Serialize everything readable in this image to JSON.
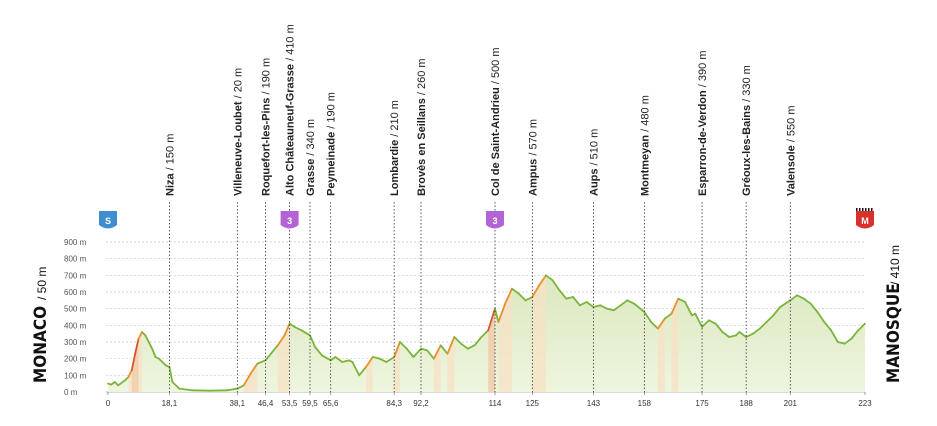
{
  "chart_data": {
    "type": "area",
    "title": "",
    "xlabel": "",
    "ylabel": "",
    "ylim": [
      0,
      900
    ],
    "xlim": [
      0,
      223
    ],
    "y_ticks": [
      "900 m",
      "800 m",
      "700 m",
      "600 m",
      "500 m",
      "400 m",
      "300 m",
      "200 m",
      "100 m",
      "0 m"
    ],
    "x_ticks": [
      "0",
      "18,1",
      "38,1",
      "46,4",
      "53,5",
      "59,5",
      "65,6",
      "84,3",
      "92,2",
      "114",
      "125",
      "143",
      "158",
      "175",
      "188",
      "201",
      "223"
    ],
    "start": {
      "name": "MONACO",
      "alt": "50 m",
      "badge": "S",
      "km": 0
    },
    "finish": {
      "name": "MANOSQUE",
      "alt": "410 m",
      "badge": "M",
      "km": 223
    },
    "waypoints": [
      {
        "km": 18.1,
        "name": "Niza",
        "alt": "150 m"
      },
      {
        "km": 38.1,
        "name": "Villeneuve-Loubet",
        "alt": "20 m"
      },
      {
        "km": 46.4,
        "name": "Roquefort-les-Pins",
        "alt": "190 m"
      },
      {
        "km": 53.5,
        "name": "Alto Châteauneuf-Grasse",
        "alt": "410 m",
        "badge": "3"
      },
      {
        "km": 59.5,
        "name": "Grasse",
        "alt": "340 m"
      },
      {
        "km": 65.6,
        "name": "Peymeinade",
        "alt": "190 m"
      },
      {
        "km": 84.3,
        "name": "Lombardie",
        "alt": "210 m"
      },
      {
        "km": 92.2,
        "name": "Brovès en Seillans",
        "alt": "260 m"
      },
      {
        "km": 114,
        "name": "Col de Saint-Andrieu",
        "alt": "500 m",
        "badge": "3"
      },
      {
        "km": 125,
        "name": "Ampus",
        "alt": "570 m"
      },
      {
        "km": 143,
        "name": "Aups",
        "alt": "510 m"
      },
      {
        "km": 158,
        "name": "Montmeyan",
        "alt": "480 m"
      },
      {
        "km": 175,
        "name": "Esparron-de-Verdon",
        "alt": "390 m"
      },
      {
        "km": 188,
        "name": "Gréoux-les-Bains",
        "alt": "330 m"
      },
      {
        "km": 201,
        "name": "Valensole",
        "alt": "550 m"
      }
    ],
    "profile": {
      "x": [
        0,
        1,
        2,
        3,
        5,
        6,
        7,
        8,
        9,
        10,
        11,
        12,
        13,
        14,
        15,
        16,
        17,
        18.1,
        19,
        21,
        25,
        30,
        35,
        38.1,
        40,
        42,
        44,
        46.4,
        48,
        50,
        52,
        53.5,
        55,
        57,
        59.5,
        61,
        63,
        65.6,
        67,
        69,
        71,
        72,
        74,
        76,
        78,
        80,
        82,
        84.3,
        86,
        88,
        90,
        92.2,
        94,
        96,
        98,
        100,
        102,
        104,
        106,
        108,
        110,
        112,
        114,
        115,
        117,
        119,
        121,
        123,
        125,
        127,
        129,
        131,
        133,
        135,
        137,
        139,
        141,
        143,
        145,
        147,
        149,
        151,
        153,
        155,
        158,
        160,
        162,
        164,
        166,
        168,
        170,
        172,
        173,
        175,
        177,
        179,
        181,
        183,
        185,
        186,
        188,
        190,
        192,
        194,
        196,
        198,
        201,
        203,
        205,
        207,
        209,
        211,
        213,
        215,
        217,
        219,
        221,
        223
      ],
      "y": [
        50,
        45,
        60,
        40,
        70,
        90,
        130,
        230,
        320,
        360,
        340,
        300,
        260,
        210,
        200,
        180,
        160,
        150,
        60,
        20,
        10,
        8,
        10,
        20,
        40,
        110,
        170,
        190,
        230,
        280,
        340,
        410,
        390,
        370,
        340,
        270,
        220,
        190,
        210,
        180,
        190,
        180,
        100,
        150,
        210,
        200,
        180,
        210,
        300,
        260,
        210,
        260,
        250,
        200,
        280,
        230,
        330,
        290,
        260,
        280,
        330,
        370,
        500,
        420,
        530,
        620,
        590,
        550,
        570,
        640,
        700,
        670,
        610,
        560,
        570,
        520,
        540,
        510,
        520,
        500,
        490,
        520,
        550,
        530,
        480,
        420,
        380,
        440,
        470,
        560,
        540,
        460,
        470,
        390,
        430,
        410,
        360,
        330,
        340,
        360,
        330,
        350,
        380,
        420,
        460,
        510,
        550,
        580,
        560,
        530,
        480,
        420,
        370,
        300,
        290,
        320,
        370,
        410
      ]
    }
  }
}
